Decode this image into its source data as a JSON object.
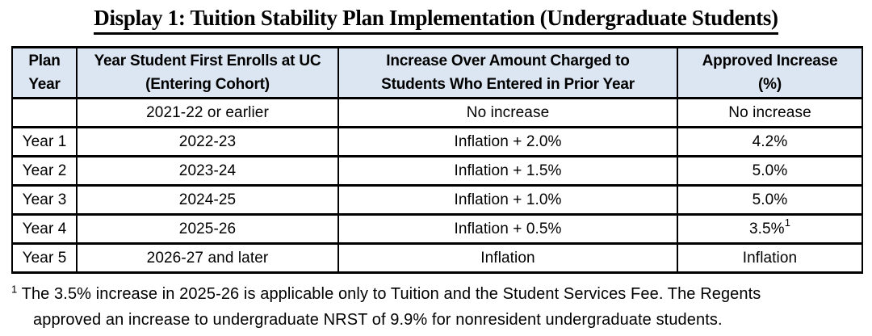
{
  "title": "Display 1: Tuition Stability Plan Implementation (Undergraduate Students)",
  "table": {
    "headers": [
      {
        "id": "plan-year",
        "lines": [
          "Plan",
          "Year"
        ]
      },
      {
        "id": "entering-cohort",
        "lines": [
          "Year Student First Enrolls at UC",
          "(Entering Cohort)"
        ]
      },
      {
        "id": "increase-over",
        "lines": [
          "Increase Over Amount Charged to",
          "Students Who Entered in Prior Year"
        ]
      },
      {
        "id": "approved-increase",
        "lines": [
          "Approved Increase",
          "(%)"
        ]
      }
    ],
    "rows": [
      {
        "plan_year": "",
        "cohort": "2021-22 or earlier",
        "increase": "No increase",
        "approved": "No increase",
        "approved_sup": ""
      },
      {
        "plan_year": "Year 1",
        "cohort": "2022-23",
        "increase": "Inflation + 2.0%",
        "approved": "4.2%",
        "approved_sup": ""
      },
      {
        "plan_year": "Year 2",
        "cohort": "2023-24",
        "increase": "Inflation + 1.5%",
        "approved": "5.0%",
        "approved_sup": ""
      },
      {
        "plan_year": "Year 3",
        "cohort": "2024-25",
        "increase": "Inflation + 1.0%",
        "approved": "5.0%",
        "approved_sup": ""
      },
      {
        "plan_year": "Year 4",
        "cohort": "2025-26",
        "increase": "Inflation + 0.5%",
        "approved": "3.5%",
        "approved_sup": "1"
      },
      {
        "plan_year": "Year 5",
        "cohort": "2026-27 and later",
        "increase": "Inflation",
        "approved": "Inflation",
        "approved_sup": ""
      }
    ]
  },
  "footnote": {
    "marker": "1",
    "line1": "The 3.5% increase in 2025-26 is applicable only to Tuition and the Student Services Fee. The Regents",
    "line2": "approved an increase to undergraduate NRST of 9.9% for nonresident undergraduate students."
  },
  "colors": {
    "header_bg": "#dce6f2",
    "border": "#000000",
    "text": "#000000",
    "page_bg": "#ffffff"
  }
}
